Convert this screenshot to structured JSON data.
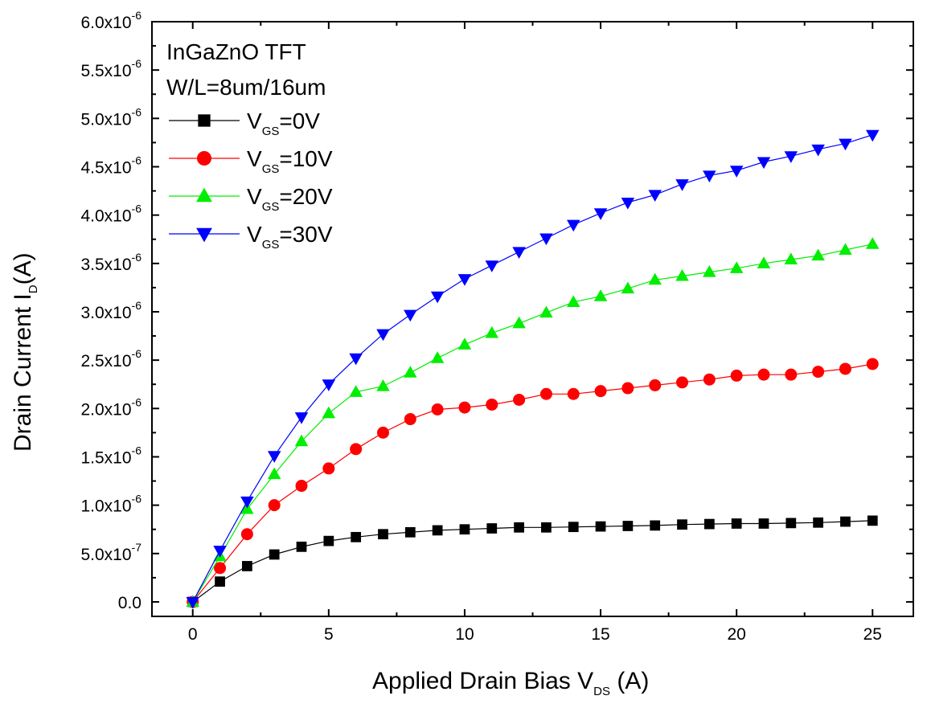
{
  "chart_data": {
    "type": "line",
    "title": "",
    "annotations": [
      "InGaZnO TFT",
      "W/L=8um/16um"
    ],
    "xlabel": {
      "main": "Applied Drain Bias V",
      "sub": "DS",
      "unit": " (A)"
    },
    "ylabel": {
      "main": "Drain Current I",
      "sub": "D",
      "unit": "(A)"
    },
    "xlim": [
      -1.5,
      26.5
    ],
    "ylim": [
      -1.5e-07,
      6e-06
    ],
    "x_ticks": [
      0,
      5,
      10,
      15,
      20,
      25
    ],
    "x_tick_labels": [
      "0",
      "5",
      "10",
      "15",
      "20",
      "25"
    ],
    "y_ticks": [
      0,
      5e-07,
      1e-06,
      1.5e-06,
      2e-06,
      2.5e-06,
      3e-06,
      3.5e-06,
      4e-06,
      4.5e-06,
      5e-06,
      5.5e-06,
      6e-06
    ],
    "y_tick_labels": [
      {
        "m": "0.0",
        "e": ""
      },
      {
        "m": "5.0x10",
        "e": "-7"
      },
      {
        "m": "1.0x10",
        "e": "-6"
      },
      {
        "m": "1.5x10",
        "e": "-6"
      },
      {
        "m": "2.0x10",
        "e": "-6"
      },
      {
        "m": "2.5x10",
        "e": "-6"
      },
      {
        "m": "3.0x10",
        "e": "-6"
      },
      {
        "m": "3.5x10",
        "e": "-6"
      },
      {
        "m": "4.0x10",
        "e": "-6"
      },
      {
        "m": "4.5x10",
        "e": "-6"
      },
      {
        "m": "5.0x10",
        "e": "-6"
      },
      {
        "m": "5.5x10",
        "e": "-6"
      },
      {
        "m": "6.0x10",
        "e": "-6"
      }
    ],
    "grid": false,
    "legend_position": "top-left",
    "x": [
      0,
      1,
      2,
      3,
      4,
      5,
      6,
      7,
      8,
      9,
      10,
      11,
      12,
      13,
      14,
      15,
      16,
      17,
      18,
      19,
      20,
      21,
      22,
      23,
      24,
      25
    ],
    "series": [
      {
        "name": "V_GS=0V",
        "label_main": "V",
        "label_sub": "GS",
        "label_rest": "=0V",
        "color": "#000000",
        "marker": "square",
        "values": [
          0,
          2.1e-07,
          3.7e-07,
          4.9e-07,
          5.7e-07,
          6.3e-07,
          6.7e-07,
          7e-07,
          7.2e-07,
          7.4e-07,
          7.5e-07,
          7.6e-07,
          7.7e-07,
          7.7e-07,
          7.75e-07,
          7.8e-07,
          7.85e-07,
          7.9e-07,
          8e-07,
          8.05e-07,
          8.1e-07,
          8.1e-07,
          8.15e-07,
          8.2e-07,
          8.3e-07,
          8.4e-07
        ]
      },
      {
        "name": "V_GS=10V",
        "label_main": "V",
        "label_sub": "GS",
        "label_rest": "=10V",
        "color": "#ff0000",
        "marker": "circle",
        "values": [
          0,
          3.5e-07,
          7e-07,
          1e-06,
          1.2e-06,
          1.38e-06,
          1.58e-06,
          1.75e-06,
          1.89e-06,
          1.99e-06,
          2.01e-06,
          2.04e-06,
          2.09e-06,
          2.15e-06,
          2.15e-06,
          2.18e-06,
          2.21e-06,
          2.24e-06,
          2.27e-06,
          2.3e-06,
          2.34e-06,
          2.35e-06,
          2.35e-06,
          2.38e-06,
          2.41e-06,
          2.46e-06
        ]
      },
      {
        "name": "V_GS=20V",
        "label_main": "V",
        "label_sub": "GS",
        "label_rest": "=20V",
        "color": "#00ee00",
        "marker": "triangle-up",
        "values": [
          0,
          4.7e-07,
          9.6e-07,
          1.32e-06,
          1.66e-06,
          1.95e-06,
          2.17e-06,
          2.23e-06,
          2.37e-06,
          2.52e-06,
          2.66e-06,
          2.78e-06,
          2.88e-06,
          2.99e-06,
          3.1e-06,
          3.16e-06,
          3.24e-06,
          3.33e-06,
          3.37e-06,
          3.41e-06,
          3.45e-06,
          3.5e-06,
          3.54e-06,
          3.58e-06,
          3.64e-06,
          3.7e-06
        ]
      },
      {
        "name": "V_GS=30V",
        "label_main": "V",
        "label_sub": "GS",
        "label_rest": "=30V",
        "color": "#0000ff",
        "marker": "triangle-down",
        "values": [
          0,
          5.3e-07,
          1.04e-06,
          1.51e-06,
          1.91e-06,
          2.25e-06,
          2.52e-06,
          2.77e-06,
          2.97e-06,
          3.16e-06,
          3.34e-06,
          3.48e-06,
          3.62e-06,
          3.76e-06,
          3.9e-06,
          4.02e-06,
          4.13e-06,
          4.21e-06,
          4.32e-06,
          4.41e-06,
          4.46e-06,
          4.55e-06,
          4.61e-06,
          4.68e-06,
          4.74e-06,
          4.83e-06
        ]
      }
    ]
  }
}
